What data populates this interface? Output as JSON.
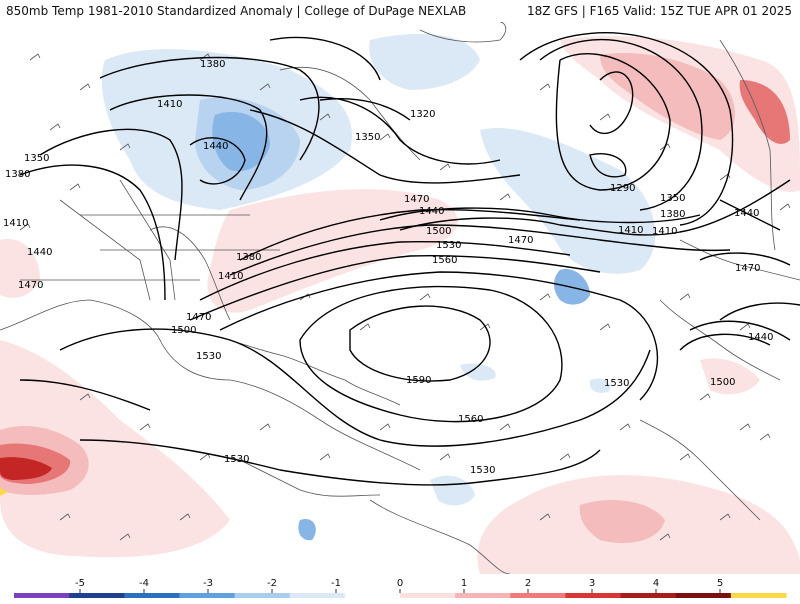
{
  "header": {
    "title": "850mb Temp 1981-2010 Standardized Anomaly | College of DuPage NEXLAB",
    "run_info": "18Z GFS | F165 Valid: 15Z TUE APR 01 2025"
  },
  "contour_labels": [
    "1380",
    "1320",
    "1350",
    "1410",
    "1440",
    "1350",
    "1380",
    "1410",
    "1440",
    "1470",
    "1290",
    "1350",
    "1380",
    "1410",
    "1440",
    "1470",
    "1500",
    "1530",
    "1560",
    "1470",
    "1410",
    "1380",
    "1470",
    "1500",
    "1530",
    "1590",
    "1530",
    "1560",
    "1530",
    "1530",
    "1440",
    "1440",
    "1470",
    "1500",
    "1410"
  ],
  "colorbar": {
    "ticks": [
      "-5",
      "-4",
      "-3",
      "-2",
      "-1",
      "0",
      "1",
      "2",
      "3",
      "4",
      "5"
    ],
    "colors": [
      "#7b3fbf",
      "#1f3f8f",
      "#2a6fc0",
      "#5fa0e0",
      "#a9cdef",
      "#dbe9f7",
      "#ffffff",
      "#fbe0e0",
      "#f6b4b4",
      "#ee7a7a",
      "#d93535",
      "#a81c1c",
      "#7a0f0f",
      "#ffd84a"
    ]
  },
  "anomaly_colors": {
    "cold_light": "#dbe8f5",
    "cold_mid": "#b8d3ef",
    "cold_strong": "#86b5e6",
    "warm_light": "#fbe3e3",
    "warm_mid": "#f4bcbc",
    "warm_strong": "#e77777",
    "warm_extreme": "#c42525"
  }
}
